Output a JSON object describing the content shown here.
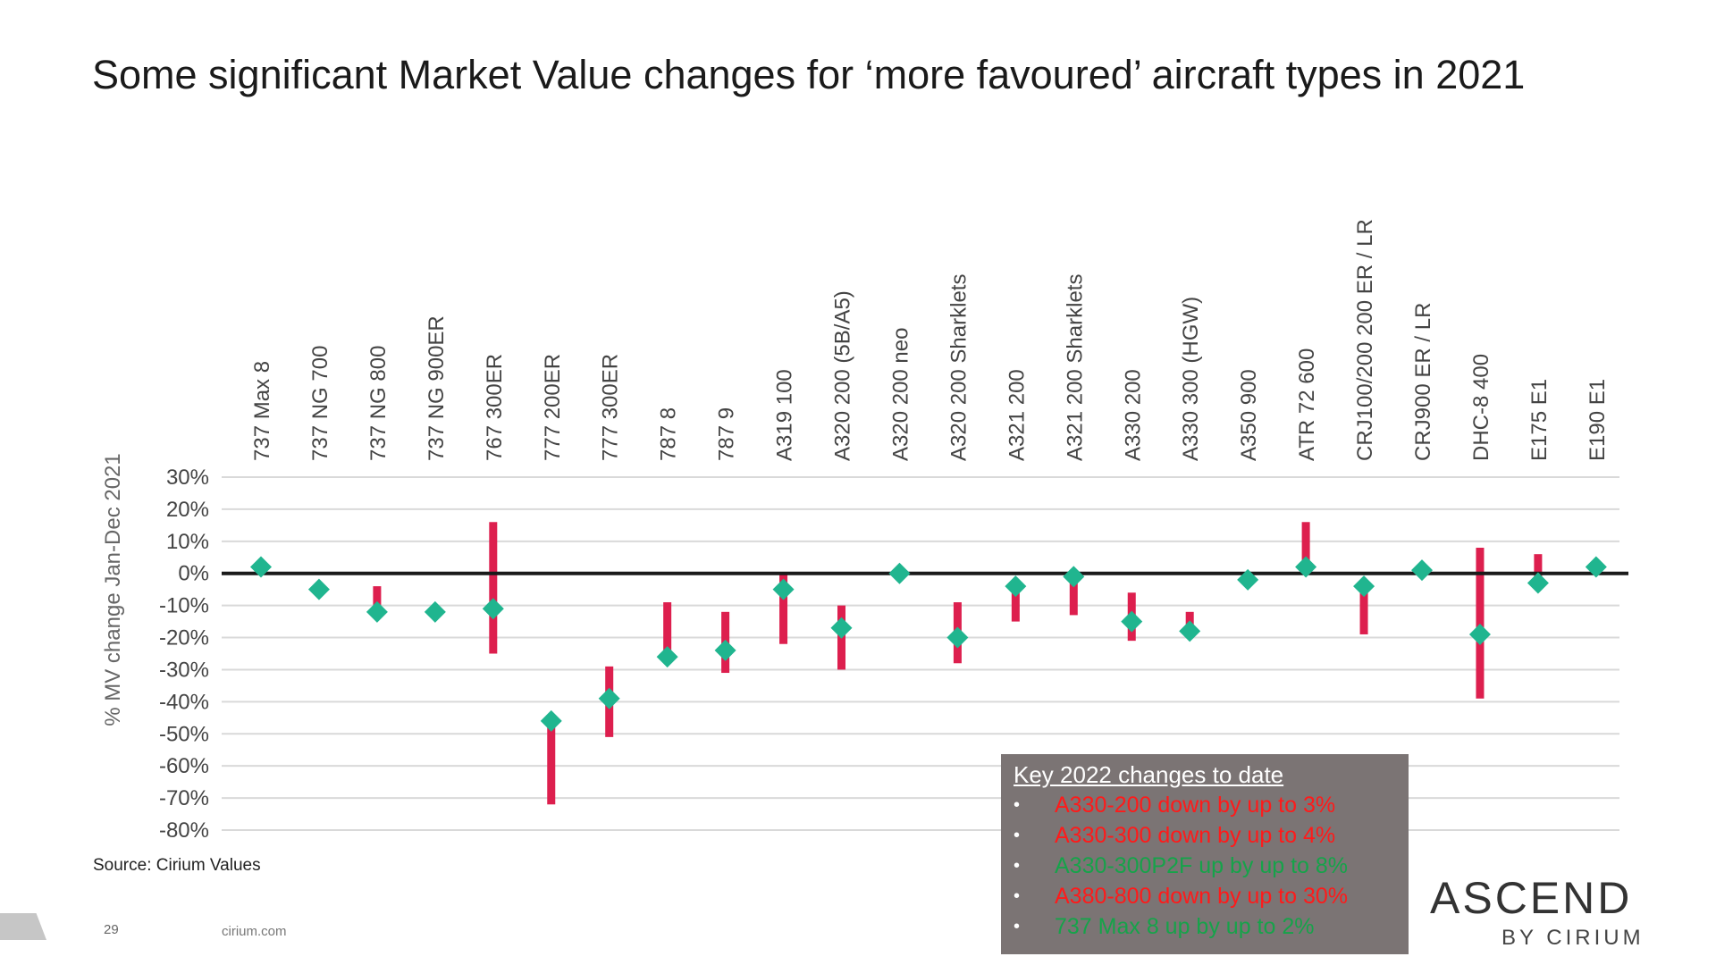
{
  "title": "Some significant Market Value changes for ‘more favoured’ aircraft types in 2021",
  "source": "Source: Cirium Values",
  "page_number": "29",
  "footer_url": "cirium.com",
  "brand": {
    "name": "ASCEND",
    "sub": "BY CIRIUM"
  },
  "key": {
    "title": "Key 2022 changes to date",
    "items": [
      {
        "text": "A330-200 down by up to 3%",
        "color": "#ff1a1a"
      },
      {
        "text": "A330-300 down by up to 4%",
        "color": "#ff1a1a"
      },
      {
        "text": "A330-300P2F up by up to 8%",
        "color": "#16a34a"
      },
      {
        "text": "A380-800 down by up to 30%",
        "color": "#ff1a1a"
      },
      {
        "text": "737 Max 8 up by up to 2%",
        "color": "#16a34a"
      }
    ]
  },
  "colors": {
    "range_bar": "#dd1f4e",
    "marker": "#20b58f",
    "zero_line": "#1a1a1a",
    "grid": "#d9d9d9"
  },
  "chart_data": {
    "type": "scatter",
    "ylabel": "% MV change Jan-Dec 2021",
    "ylim": [
      -80,
      30
    ],
    "yticks": [
      30,
      20,
      10,
      0,
      -10,
      -20,
      -30,
      -40,
      -50,
      -60,
      -70,
      -80
    ],
    "ytick_labels": [
      "30%",
      "20%",
      "10%",
      "0%",
      "-10%",
      "-20%",
      "-30%",
      "-40%",
      "-50%",
      "-60%",
      "-70%",
      "-80%"
    ],
    "grid": true,
    "categories": [
      "737 Max 8",
      "737 NG 700",
      "737 NG 800",
      "737 NG 900ER",
      "767 300ER",
      "777 200ER",
      "777 300ER",
      "787 8",
      "787 9",
      "A319 100",
      "A320 200 (5B/A5)",
      "A320 200 neo",
      "A320 200 Sharklets",
      "A321 200",
      "A321 200 Sharklets",
      "A330 200",
      "A330 300 (HGW)",
      "A350 900",
      "ATR 72 600",
      "CRJ100/200 200 ER / LR",
      "CRJ900 ER / LR",
      "DHC-8 400",
      "E175 E1",
      "E190 E1"
    ],
    "series": [
      {
        "type": "range",
        "low": [
          null,
          null,
          -13,
          null,
          -25,
          -72,
          -51,
          -27,
          -31,
          -22,
          -30,
          null,
          -28,
          -15,
          -13,
          -21,
          -18,
          null,
          0,
          -19,
          null,
          -39,
          -3,
          null
        ],
        "high": [
          null,
          null,
          -4,
          null,
          16,
          -46,
          -29,
          -9,
          -12,
          0,
          -10,
          null,
          -9,
          -3,
          -1,
          -6,
          -12,
          null,
          16,
          -3,
          null,
          8,
          6,
          null
        ]
      },
      {
        "type": "point",
        "values": [
          2,
          -5,
          -12,
          -12,
          -11,
          -46,
          -39,
          -26,
          -24,
          -5,
          -17,
          0,
          -20,
          -4,
          -1,
          -15,
          -18,
          -2,
          2,
          -4,
          1,
          -19,
          -3,
          2
        ]
      }
    ]
  }
}
